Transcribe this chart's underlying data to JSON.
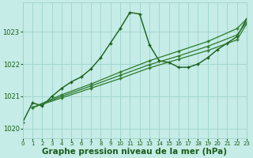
{
  "bg_color": "#c5ece6",
  "grid_color": "#9fd4cc",
  "line_color_dark": "#1a5c1a",
  "line_color_mid": "#2d7a2d",
  "xlabel": "Graphe pression niveau de la mer (hPa)",
  "xlabel_fontsize": 7.5,
  "xlim": [
    0,
    23
  ],
  "ylim": [
    1019.7,
    1023.9
  ],
  "yticks": [
    1020,
    1021,
    1022,
    1023
  ],
  "xticks": [
    0,
    1,
    2,
    3,
    4,
    5,
    6,
    7,
    8,
    9,
    10,
    11,
    12,
    13,
    14,
    15,
    16,
    17,
    18,
    19,
    20,
    21,
    22,
    23
  ],
  "series": [
    {
      "x": [
        0,
        1,
        2,
        3,
        4,
        5,
        6,
        7,
        8,
        9,
        10,
        11,
        12,
        13,
        14,
        15,
        16,
        17,
        18,
        19,
        20,
        21,
        22,
        23
      ],
      "y": [
        1020.2,
        1020.8,
        1020.7,
        1021.0,
        1021.25,
        1021.45,
        1021.6,
        1021.85,
        1022.2,
        1022.65,
        1023.1,
        1023.6,
        1023.55,
        1022.6,
        1022.1,
        1022.05,
        1021.9,
        1021.9,
        1022.0,
        1022.2,
        1022.45,
        1022.65,
        1022.85,
        1023.4
      ],
      "color": "#1a5c1a",
      "lw": 1.0,
      "marker": "+"
    },
    {
      "x": [
        1,
        4,
        7,
        10,
        13,
        16,
        19,
        22,
        23
      ],
      "y": [
        1020.65,
        1021.05,
        1021.38,
        1021.75,
        1022.1,
        1022.4,
        1022.7,
        1023.1,
        1023.4
      ],
      "color": "#2d7a2d",
      "lw": 0.9,
      "marker": "+"
    },
    {
      "x": [
        1,
        4,
        7,
        10,
        13,
        16,
        19,
        22,
        23
      ],
      "y": [
        1020.65,
        1021.0,
        1021.32,
        1021.65,
        1021.98,
        1022.25,
        1022.55,
        1022.9,
        1023.3
      ],
      "color": "#2d7a2d",
      "lw": 0.9,
      "marker": "+"
    },
    {
      "x": [
        1,
        4,
        7,
        10,
        13,
        16,
        19,
        22,
        23
      ],
      "y": [
        1020.65,
        1020.95,
        1021.25,
        1021.55,
        1021.88,
        1022.15,
        1022.42,
        1022.75,
        1023.25
      ],
      "color": "#2d7a2d",
      "lw": 0.9,
      "marker": "+"
    }
  ]
}
